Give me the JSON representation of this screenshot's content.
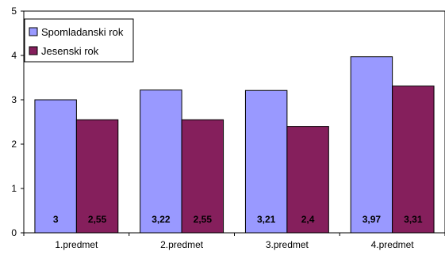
{
  "chart_data": {
    "type": "bar",
    "categories": [
      "1.predmet",
      "2.predmet",
      "3.predmet",
      "4.predmet"
    ],
    "series": [
      {
        "name": "Spomladanski rok",
        "values": [
          3,
          3.22,
          3.21,
          3.97
        ],
        "labels": [
          "3",
          "3,22",
          "3,21",
          "3,97"
        ],
        "color": "#9999ff"
      },
      {
        "name": "Jesenski rok",
        "values": [
          2.55,
          2.55,
          2.4,
          3.31
        ],
        "labels": [
          "2,55",
          "2,55",
          "2,4",
          "3,31"
        ],
        "color": "#851f5c"
      }
    ],
    "ylim": [
      0,
      5
    ],
    "yticks": [
      "0",
      "1",
      "2",
      "3",
      "4",
      "5"
    ],
    "title": "",
    "xlabel": "",
    "ylabel": "",
    "grid": false,
    "legend": "top-left"
  }
}
